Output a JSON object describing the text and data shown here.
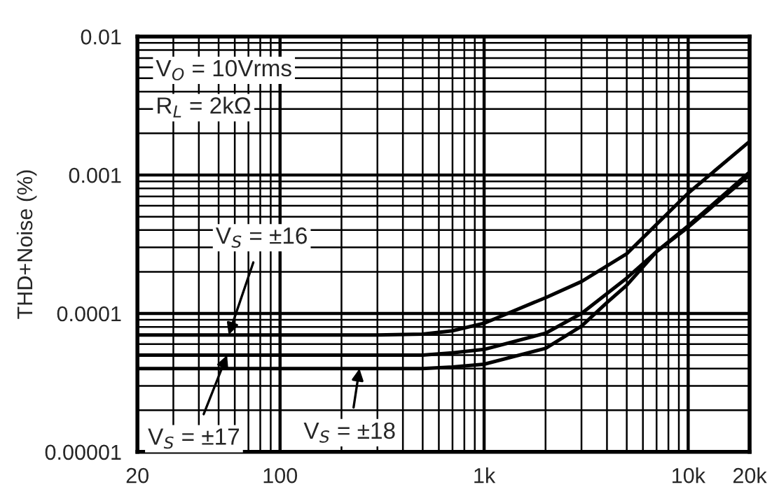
{
  "chart_data": {
    "type": "line",
    "xlabel": null,
    "ylabel": "THD+Noise (%)",
    "log": "xy",
    "grid": true,
    "legend": false,
    "marker": "none",
    "line_style": "solid",
    "xlim": [
      20,
      20000
    ],
    "ylim": [
      1e-05,
      0.01
    ],
    "xticks": [
      20,
      100,
      {
        "value": 1000,
        "label": "1k"
      },
      {
        "value": 10000,
        "label": "10k"
      },
      {
        "value": 20000,
        "label": "20k"
      }
    ],
    "yticks": [
      {
        "value": 1e-05,
        "label": "0.00001"
      },
      0.0001,
      0.001,
      0.01
    ],
    "series": [
      {
        "color": "#000000",
        "x": [
          20,
          300,
          500,
          700,
          1000,
          2000,
          3000,
          5000,
          10000,
          20000
        ],
        "values": [
          7e-05,
          7e-05,
          7.1e-05,
          7.5e-05,
          8.5e-05,
          0.00013,
          0.00017,
          0.00027,
          0.00074,
          0.00175
        ]
      },
      {
        "color": "#000000",
        "x": [
          20,
          300,
          500,
          700,
          1000,
          2000,
          3000,
          5000,
          7000,
          10000,
          20000
        ],
        "values": [
          5e-05,
          5e-05,
          5e-05,
          5.2e-05,
          5.5e-05,
          7.2e-05,
          0.0001,
          0.00018,
          0.00028,
          0.00043,
          0.00105
        ]
      },
      {
        "color": "#000000",
        "x": [
          20,
          300,
          500,
          700,
          1000,
          2000,
          3000,
          4000,
          5000,
          7000,
          10000,
          20000
        ],
        "values": [
          4e-05,
          4e-05,
          4e-05,
          4.1e-05,
          4.3e-05,
          5.6e-05,
          8.1e-05,
          0.00012,
          0.00016,
          0.00028,
          0.00042,
          0.001
        ]
      }
    ],
    "annotations": [
      "V$_{O}$ = 10Vrms",
      "R$_{L}$ = 2kΩ",
      {
        "text": "V$_{S}$ = ±16",
        "x": 56,
        "y": 7e-05
      },
      {
        "text": "V$_{S}$ = ±17",
        "x": 55,
        "y": 5e-05
      },
      {
        "text": "V$_{S}$ = ±18",
        "x": 245,
        "y": 4e-05
      }
    ]
  }
}
